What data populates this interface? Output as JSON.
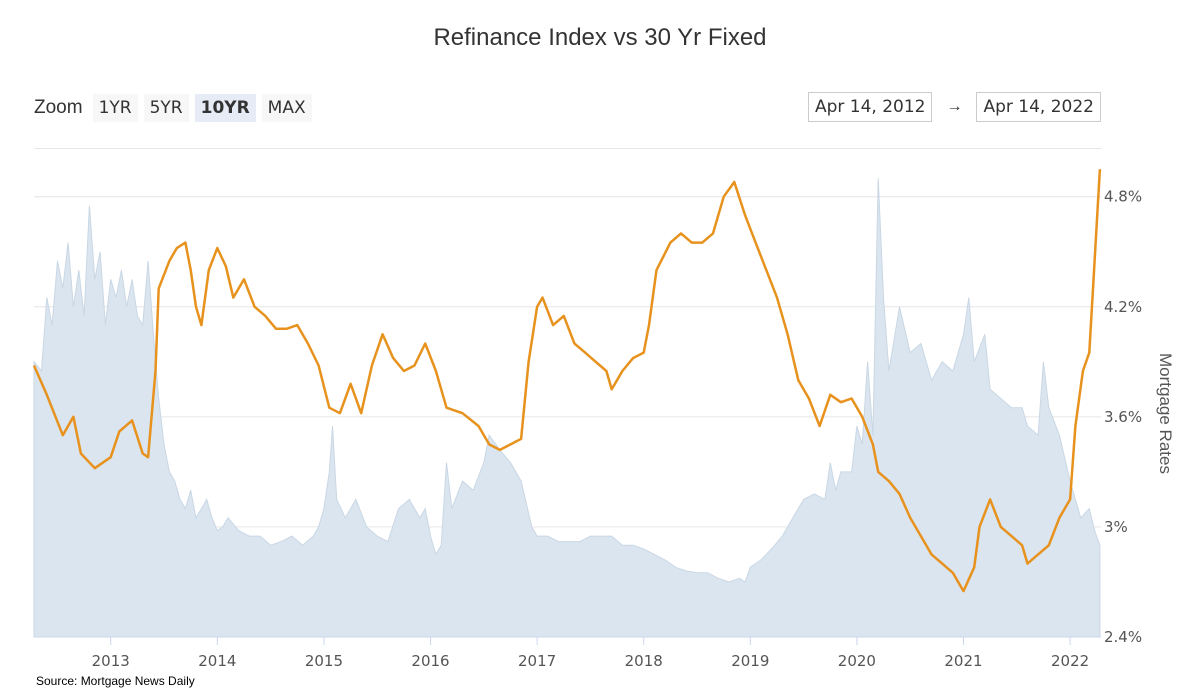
{
  "chart_data": {
    "type": "line",
    "title": "Refinance Index vs 30 Yr Fixed",
    "ylabel": "Mortgage Rates",
    "ylim": [
      2.4,
      5.0
    ],
    "yticks": [
      {
        "value": 2.4,
        "label": "2.4%"
      },
      {
        "value": 3.0,
        "label": "3%"
      },
      {
        "value": 3.6,
        "label": "3.6%"
      },
      {
        "value": 4.2,
        "label": "4.2%"
      },
      {
        "value": 4.8,
        "label": "4.8%"
      }
    ],
    "xlim": [
      2012.28,
      2022.29
    ],
    "xticks": [
      {
        "value": 2013,
        "label": "2013"
      },
      {
        "value": 2014,
        "label": "2014"
      },
      {
        "value": 2015,
        "label": "2015"
      },
      {
        "value": 2016,
        "label": "2016"
      },
      {
        "value": 2017,
        "label": "2017"
      },
      {
        "value": 2018,
        "label": "2018"
      },
      {
        "value": 2019,
        "label": "2019"
      },
      {
        "value": 2020,
        "label": "2020"
      },
      {
        "value": 2021,
        "label": "2021"
      },
      {
        "value": 2022,
        "label": "2022"
      }
    ],
    "series": [
      {
        "name": "30 Yr Fixed",
        "color": "#e8921e",
        "points": [
          [
            2012.28,
            3.88
          ],
          [
            2012.4,
            3.72
          ],
          [
            2012.55,
            3.5
          ],
          [
            2012.65,
            3.6
          ],
          [
            2012.72,
            3.4
          ],
          [
            2012.85,
            3.32
          ],
          [
            2013.0,
            3.38
          ],
          [
            2013.08,
            3.52
          ],
          [
            2013.2,
            3.58
          ],
          [
            2013.3,
            3.4
          ],
          [
            2013.35,
            3.38
          ],
          [
            2013.42,
            3.85
          ],
          [
            2013.45,
            4.3
          ],
          [
            2013.55,
            4.45
          ],
          [
            2013.62,
            4.52
          ],
          [
            2013.7,
            4.55
          ],
          [
            2013.75,
            4.4
          ],
          [
            2013.8,
            4.2
          ],
          [
            2013.85,
            4.1
          ],
          [
            2013.92,
            4.4
          ],
          [
            2014.0,
            4.52
          ],
          [
            2014.08,
            4.42
          ],
          [
            2014.15,
            4.25
          ],
          [
            2014.25,
            4.35
          ],
          [
            2014.35,
            4.2
          ],
          [
            2014.45,
            4.15
          ],
          [
            2014.55,
            4.08
          ],
          [
            2014.65,
            4.08
          ],
          [
            2014.75,
            4.1
          ],
          [
            2014.85,
            4.0
          ],
          [
            2014.95,
            3.88
          ],
          [
            2015.05,
            3.65
          ],
          [
            2015.15,
            3.62
          ],
          [
            2015.25,
            3.78
          ],
          [
            2015.35,
            3.62
          ],
          [
            2015.45,
            3.88
          ],
          [
            2015.55,
            4.05
          ],
          [
            2015.65,
            3.92
          ],
          [
            2015.75,
            3.85
          ],
          [
            2015.85,
            3.88
          ],
          [
            2015.95,
            4.0
          ],
          [
            2016.05,
            3.85
          ],
          [
            2016.15,
            3.65
          ],
          [
            2016.3,
            3.62
          ],
          [
            2016.45,
            3.55
          ],
          [
            2016.55,
            3.45
          ],
          [
            2016.65,
            3.42
          ],
          [
            2016.75,
            3.45
          ],
          [
            2016.85,
            3.48
          ],
          [
            2016.92,
            3.9
          ],
          [
            2017.0,
            4.2
          ],
          [
            2017.05,
            4.25
          ],
          [
            2017.15,
            4.1
          ],
          [
            2017.25,
            4.15
          ],
          [
            2017.35,
            4.0
          ],
          [
            2017.45,
            3.95
          ],
          [
            2017.55,
            3.9
          ],
          [
            2017.65,
            3.85
          ],
          [
            2017.7,
            3.75
          ],
          [
            2017.8,
            3.85
          ],
          [
            2017.9,
            3.92
          ],
          [
            2018.0,
            3.95
          ],
          [
            2018.05,
            4.1
          ],
          [
            2018.12,
            4.4
          ],
          [
            2018.25,
            4.55
          ],
          [
            2018.35,
            4.6
          ],
          [
            2018.45,
            4.55
          ],
          [
            2018.55,
            4.55
          ],
          [
            2018.65,
            4.6
          ],
          [
            2018.75,
            4.8
          ],
          [
            2018.85,
            4.88
          ],
          [
            2018.95,
            4.7
          ],
          [
            2019.05,
            4.55
          ],
          [
            2019.15,
            4.4
          ],
          [
            2019.25,
            4.25
          ],
          [
            2019.35,
            4.05
          ],
          [
            2019.45,
            3.8
          ],
          [
            2019.55,
            3.7
          ],
          [
            2019.65,
            3.55
          ],
          [
            2019.75,
            3.72
          ],
          [
            2019.85,
            3.68
          ],
          [
            2019.95,
            3.7
          ],
          [
            2020.05,
            3.6
          ],
          [
            2020.15,
            3.45
          ],
          [
            2020.2,
            3.3
          ],
          [
            2020.3,
            3.25
          ],
          [
            2020.4,
            3.18
          ],
          [
            2020.5,
            3.05
          ],
          [
            2020.6,
            2.95
          ],
          [
            2020.7,
            2.85
          ],
          [
            2020.8,
            2.8
          ],
          [
            2020.9,
            2.75
          ],
          [
            2021.0,
            2.65
          ],
          [
            2021.1,
            2.78
          ],
          [
            2021.15,
            3.0
          ],
          [
            2021.25,
            3.15
          ],
          [
            2021.35,
            3.0
          ],
          [
            2021.45,
            2.95
          ],
          [
            2021.55,
            2.9
          ],
          [
            2021.6,
            2.8
          ],
          [
            2021.7,
            2.85
          ],
          [
            2021.8,
            2.9
          ],
          [
            2021.9,
            3.05
          ],
          [
            2022.0,
            3.15
          ],
          [
            2022.05,
            3.55
          ],
          [
            2022.12,
            3.85
          ],
          [
            2022.18,
            3.95
          ],
          [
            2022.23,
            4.45
          ],
          [
            2022.28,
            4.95
          ]
        ]
      },
      {
        "name": "Refinance Index",
        "color": "#dbe5ef",
        "points": [
          [
            2012.28,
            3.9
          ],
          [
            2012.35,
            3.85
          ],
          [
            2012.4,
            4.25
          ],
          [
            2012.45,
            4.1
          ],
          [
            2012.5,
            4.45
          ],
          [
            2012.55,
            4.3
          ],
          [
            2012.6,
            4.55
          ],
          [
            2012.65,
            4.2
          ],
          [
            2012.7,
            4.4
          ],
          [
            2012.75,
            4.15
          ],
          [
            2012.8,
            4.75
          ],
          [
            2012.85,
            4.35
          ],
          [
            2012.9,
            4.5
          ],
          [
            2012.95,
            4.1
          ],
          [
            2013.0,
            4.35
          ],
          [
            2013.05,
            4.25
          ],
          [
            2013.1,
            4.4
          ],
          [
            2013.15,
            4.2
          ],
          [
            2013.2,
            4.35
          ],
          [
            2013.25,
            4.15
          ],
          [
            2013.3,
            4.1
          ],
          [
            2013.35,
            4.45
          ],
          [
            2013.4,
            4.05
          ],
          [
            2013.45,
            3.7
          ],
          [
            2013.5,
            3.45
          ],
          [
            2013.55,
            3.3
          ],
          [
            2013.6,
            3.25
          ],
          [
            2013.65,
            3.15
          ],
          [
            2013.7,
            3.1
          ],
          [
            2013.75,
            3.2
          ],
          [
            2013.8,
            3.05
          ],
          [
            2013.85,
            3.1
          ],
          [
            2013.9,
            3.15
          ],
          [
            2013.95,
            3.05
          ],
          [
            2014.0,
            2.98
          ],
          [
            2014.05,
            3.0
          ],
          [
            2014.1,
            3.05
          ],
          [
            2014.2,
            2.98
          ],
          [
            2014.3,
            2.95
          ],
          [
            2014.4,
            2.95
          ],
          [
            2014.5,
            2.9
          ],
          [
            2014.6,
            2.92
          ],
          [
            2014.7,
            2.95
          ],
          [
            2014.8,
            2.9
          ],
          [
            2014.9,
            2.95
          ],
          [
            2014.95,
            3.0
          ],
          [
            2015.0,
            3.1
          ],
          [
            2015.05,
            3.3
          ],
          [
            2015.08,
            3.55
          ],
          [
            2015.12,
            3.15
          ],
          [
            2015.2,
            3.05
          ],
          [
            2015.3,
            3.15
          ],
          [
            2015.4,
            3.0
          ],
          [
            2015.5,
            2.95
          ],
          [
            2015.6,
            2.92
          ],
          [
            2015.7,
            3.1
          ],
          [
            2015.8,
            3.15
          ],
          [
            2015.9,
            3.05
          ],
          [
            2015.95,
            3.1
          ],
          [
            2016.0,
            2.95
          ],
          [
            2016.05,
            2.85
          ],
          [
            2016.1,
            2.9
          ],
          [
            2016.15,
            3.35
          ],
          [
            2016.2,
            3.1
          ],
          [
            2016.3,
            3.25
          ],
          [
            2016.4,
            3.2
          ],
          [
            2016.5,
            3.35
          ],
          [
            2016.55,
            3.5
          ],
          [
            2016.65,
            3.42
          ],
          [
            2016.75,
            3.35
          ],
          [
            2016.85,
            3.25
          ],
          [
            2016.95,
            3.0
          ],
          [
            2017.0,
            2.95
          ],
          [
            2017.1,
            2.95
          ],
          [
            2017.2,
            2.92
          ],
          [
            2017.3,
            2.92
          ],
          [
            2017.4,
            2.92
          ],
          [
            2017.5,
            2.95
          ],
          [
            2017.6,
            2.95
          ],
          [
            2017.7,
            2.95
          ],
          [
            2017.8,
            2.9
          ],
          [
            2017.9,
            2.9
          ],
          [
            2018.0,
            2.88
          ],
          [
            2018.1,
            2.85
          ],
          [
            2018.2,
            2.82
          ],
          [
            2018.3,
            2.78
          ],
          [
            2018.4,
            2.76
          ],
          [
            2018.5,
            2.75
          ],
          [
            2018.6,
            2.75
          ],
          [
            2018.7,
            2.72
          ],
          [
            2018.8,
            2.7
          ],
          [
            2018.9,
            2.72
          ],
          [
            2018.95,
            2.7
          ],
          [
            2019.0,
            2.78
          ],
          [
            2019.1,
            2.82
          ],
          [
            2019.2,
            2.88
          ],
          [
            2019.3,
            2.95
          ],
          [
            2019.4,
            3.05
          ],
          [
            2019.5,
            3.15
          ],
          [
            2019.6,
            3.18
          ],
          [
            2019.7,
            3.15
          ],
          [
            2019.75,
            3.35
          ],
          [
            2019.8,
            3.2
          ],
          [
            2019.85,
            3.3
          ],
          [
            2019.95,
            3.3
          ],
          [
            2020.0,
            3.55
          ],
          [
            2020.05,
            3.45
          ],
          [
            2020.1,
            3.9
          ],
          [
            2020.15,
            3.5
          ],
          [
            2020.2,
            4.9
          ],
          [
            2020.25,
            4.25
          ],
          [
            2020.3,
            3.85
          ],
          [
            2020.4,
            4.2
          ],
          [
            2020.5,
            3.95
          ],
          [
            2020.6,
            4.0
          ],
          [
            2020.7,
            3.8
          ],
          [
            2020.8,
            3.9
          ],
          [
            2020.9,
            3.85
          ],
          [
            2021.0,
            4.05
          ],
          [
            2021.05,
            4.25
          ],
          [
            2021.1,
            3.9
          ],
          [
            2021.2,
            4.05
          ],
          [
            2021.25,
            3.75
          ],
          [
            2021.35,
            3.7
          ],
          [
            2021.45,
            3.65
          ],
          [
            2021.55,
            3.65
          ],
          [
            2021.6,
            3.55
          ],
          [
            2021.7,
            3.5
          ],
          [
            2021.75,
            3.9
          ],
          [
            2021.8,
            3.65
          ],
          [
            2021.9,
            3.5
          ],
          [
            2022.0,
            3.25
          ],
          [
            2022.1,
            3.05
          ],
          [
            2022.18,
            3.1
          ],
          [
            2022.23,
            2.98
          ],
          [
            2022.28,
            2.9
          ]
        ]
      }
    ]
  },
  "zoom": {
    "label": "Zoom",
    "buttons": [
      "1YR",
      "5YR",
      "10YR",
      "MAX"
    ],
    "active": "10YR"
  },
  "range": {
    "from": "Apr 14, 2012",
    "arrow": "→",
    "to": "Apr 14, 2022"
  },
  "source": "Source: Mortgage News Daily"
}
